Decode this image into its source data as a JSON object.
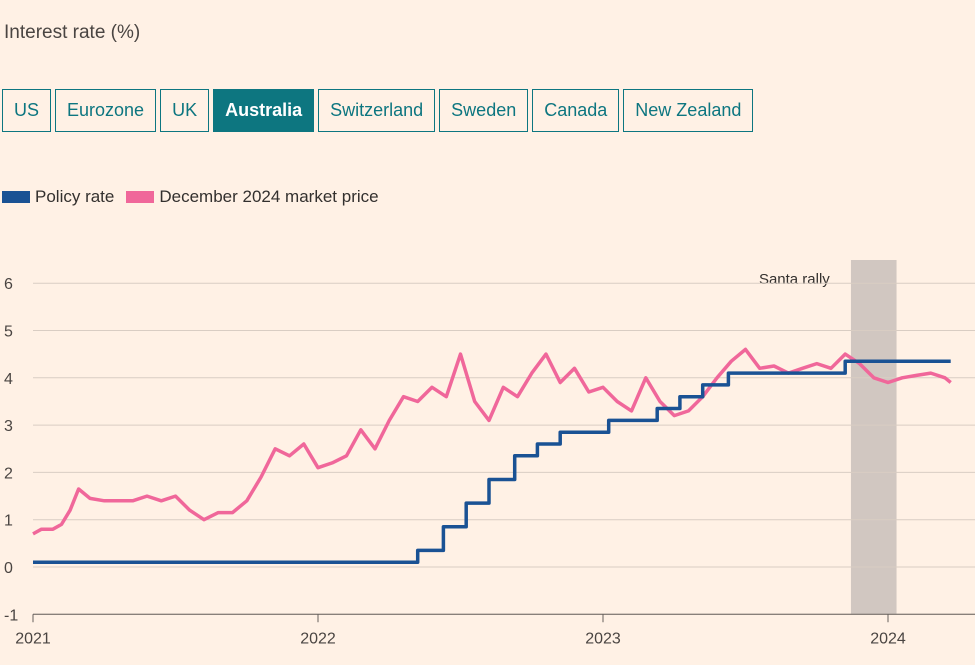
{
  "header": {
    "subtitle": "Interest rate (%)"
  },
  "tabs": [
    {
      "label": "US",
      "active": false
    },
    {
      "label": "Eurozone",
      "active": false
    },
    {
      "label": "UK",
      "active": false
    },
    {
      "label": "Australia",
      "active": true
    },
    {
      "label": "Switzerland",
      "active": false
    },
    {
      "label": "Sweden",
      "active": false
    },
    {
      "label": "Canada",
      "active": false
    },
    {
      "label": "New Zealand",
      "active": false
    }
  ],
  "colors": {
    "policy": "#1a5294",
    "market": "#f0679a",
    "accent": "#0d7680",
    "shade": "#c9c0bb",
    "background": "#fff1e5"
  },
  "chart_data": {
    "type": "line",
    "ylabel": "Interest rate (%)",
    "ylim": [
      -1,
      6.5
    ],
    "yticks": [
      -1,
      0,
      1,
      2,
      3,
      4,
      5,
      6
    ],
    "ytick_labels": [
      "-1",
      "0",
      "1",
      "2",
      "3",
      "4",
      "5",
      "6"
    ],
    "xlim": [
      2021.0,
      2024.3
    ],
    "xticks": [
      2021,
      2022,
      2023,
      2024
    ],
    "xtick_labels": [
      "2021",
      "2022",
      "2023",
      "2024"
    ],
    "grid": true,
    "legend_position": "top-left",
    "annotations": [
      {
        "label": "Santa rally",
        "x_start": 2023.87,
        "x_end": 2024.03
      }
    ],
    "series": [
      {
        "name": "Policy rate",
        "step": true,
        "x": [
          2021.0,
          2022.35,
          2022.44,
          2022.52,
          2022.6,
          2022.69,
          2022.77,
          2022.85,
          2023.02,
          2023.19,
          2023.27,
          2023.35,
          2023.44,
          2023.85,
          2024.22
        ],
        "y": [
          0.1,
          0.35,
          0.85,
          1.35,
          1.85,
          2.35,
          2.6,
          2.85,
          3.1,
          3.35,
          3.6,
          3.85,
          4.1,
          4.35,
          4.35
        ]
      },
      {
        "name": "December 2024 market price",
        "step": false,
        "x": [
          2021.0,
          2021.03,
          2021.07,
          2021.1,
          2021.13,
          2021.16,
          2021.2,
          2021.25,
          2021.3,
          2021.35,
          2021.4,
          2021.45,
          2021.5,
          2021.55,
          2021.6,
          2021.65,
          2021.7,
          2021.75,
          2021.8,
          2021.85,
          2021.9,
          2021.95,
          2022.0,
          2022.05,
          2022.1,
          2022.15,
          2022.2,
          2022.25,
          2022.3,
          2022.35,
          2022.4,
          2022.45,
          2022.5,
          2022.55,
          2022.6,
          2022.65,
          2022.7,
          2022.75,
          2022.8,
          2022.85,
          2022.9,
          2022.95,
          2023.0,
          2023.05,
          2023.1,
          2023.15,
          2023.2,
          2023.25,
          2023.3,
          2023.35,
          2023.4,
          2023.45,
          2023.5,
          2023.55,
          2023.6,
          2023.65,
          2023.7,
          2023.75,
          2023.8,
          2023.85,
          2023.9,
          2023.95,
          2024.0,
          2024.05,
          2024.1,
          2024.15,
          2024.2,
          2024.22
        ],
        "y": [
          0.7,
          0.8,
          0.8,
          0.9,
          1.2,
          1.65,
          1.45,
          1.4,
          1.4,
          1.4,
          1.5,
          1.4,
          1.5,
          1.2,
          1.0,
          1.15,
          1.15,
          1.4,
          1.9,
          2.5,
          2.35,
          2.6,
          2.1,
          2.2,
          2.35,
          2.9,
          2.5,
          3.1,
          3.6,
          3.5,
          3.8,
          3.6,
          4.5,
          3.5,
          3.1,
          3.8,
          3.6,
          4.1,
          4.5,
          3.9,
          4.2,
          3.7,
          3.8,
          3.5,
          3.3,
          4.0,
          3.5,
          3.2,
          3.3,
          3.6,
          4.0,
          4.35,
          4.6,
          4.2,
          4.25,
          4.1,
          4.2,
          4.3,
          4.2,
          4.5,
          4.3,
          4.0,
          3.9,
          4.0,
          4.05,
          4.1,
          4.0,
          3.9
        ]
      }
    ]
  }
}
